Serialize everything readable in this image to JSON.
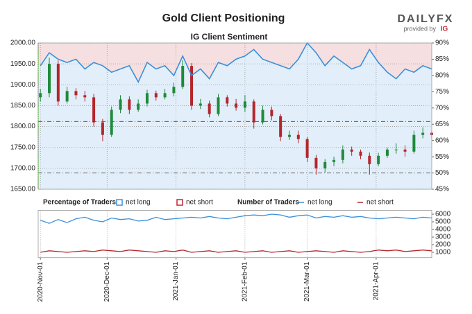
{
  "logo": {
    "brand": "DAILYFX",
    "tagline": "provided by",
    "mark": "IG"
  },
  "chart_data": [
    {
      "type": "candlestick",
      "title": "Gold Client Positioning",
      "subtitle": "IG Client Sentiment",
      "x": [
        "2020-11-01",
        "2020-11-05",
        "2020-11-09",
        "2020-11-13",
        "2020-11-17",
        "2020-11-21",
        "2020-11-25",
        "2020-11-29",
        "2020-12-03",
        "2020-12-07",
        "2020-12-11",
        "2020-12-15",
        "2020-12-19",
        "2020-12-23",
        "2020-12-27",
        "2020-12-31",
        "2021-01-04",
        "2021-01-08",
        "2021-01-12",
        "2021-01-16",
        "2021-01-20",
        "2021-01-24",
        "2021-01-28",
        "2021-02-01",
        "2021-02-05",
        "2021-02-09",
        "2021-02-13",
        "2021-02-17",
        "2021-02-21",
        "2021-02-25",
        "2021-03-01",
        "2021-03-05",
        "2021-03-09",
        "2021-03-13",
        "2021-03-17",
        "2021-03-21",
        "2021-03-25",
        "2021-03-29",
        "2021-04-02",
        "2021-04-06",
        "2021-04-10",
        "2021-04-14",
        "2021-04-18",
        "2021-04-22",
        "2021-04-26"
      ],
      "open": [
        1870,
        1880,
        1950,
        1860,
        1885,
        1875,
        1870,
        1810,
        1780,
        1840,
        1865,
        1840,
        1855,
        1880,
        1870,
        1880,
        1895,
        1945,
        1850,
        1855,
        1830,
        1870,
        1855,
        1845,
        1860,
        1810,
        1840,
        1825,
        1775,
        1780,
        1770,
        1725,
        1700,
        1715,
        1720,
        1745,
        1740,
        1730,
        1710,
        1730,
        1745,
        1745,
        1740,
        1780,
        1785
      ],
      "high": [
        1890,
        1965,
        1958,
        1895,
        1892,
        1885,
        1878,
        1818,
        1848,
        1875,
        1872,
        1865,
        1888,
        1886,
        1890,
        1905,
        1959,
        1952,
        1866,
        1862,
        1878,
        1875,
        1866,
        1875,
        1865,
        1850,
        1848,
        1830,
        1790,
        1790,
        1775,
        1732,
        1722,
        1728,
        1755,
        1752,
        1745,
        1738,
        1737,
        1750,
        1760,
        1755,
        1790,
        1798,
        1790
      ],
      "low": [
        1860,
        1870,
        1850,
        1855,
        1865,
        1860,
        1800,
        1765,
        1775,
        1832,
        1830,
        1835,
        1848,
        1862,
        1865,
        1872,
        1890,
        1840,
        1842,
        1822,
        1825,
        1848,
        1838,
        1835,
        1795,
        1805,
        1815,
        1765,
        1768,
        1760,
        1715,
        1685,
        1690,
        1705,
        1712,
        1730,
        1722,
        1685,
        1705,
        1725,
        1735,
        1728,
        1735,
        1772,
        1772
      ],
      "close": [
        1880,
        1950,
        1860,
        1885,
        1875,
        1870,
        1810,
        1780,
        1840,
        1865,
        1840,
        1855,
        1880,
        1870,
        1880,
        1895,
        1945,
        1850,
        1855,
        1830,
        1870,
        1855,
        1845,
        1860,
        1810,
        1840,
        1825,
        1775,
        1780,
        1770,
        1725,
        1700,
        1715,
        1720,
        1745,
        1740,
        1730,
        1710,
        1730,
        1745,
        1745,
        1740,
        1780,
        1785,
        1780
      ],
      "up_color": "#1f8a3a",
      "down_color": "#b3262c",
      "series": [
        {
          "name": "net long",
          "axis": "y2",
          "color": "#3a8fd9",
          "values": [
            83,
            87,
            85,
            84,
            85,
            82,
            84,
            83,
            81,
            82,
            83,
            78,
            84,
            82,
            83,
            80,
            86,
            80,
            82,
            79,
            84,
            83,
            85,
            86,
            88,
            85,
            84,
            83,
            82,
            85,
            90,
            87,
            83,
            86,
            84,
            82,
            83,
            88,
            84,
            81,
            79,
            82,
            81,
            83,
            82
          ]
        }
      ],
      "legend_title": "Percentage of Traders",
      "legend": [
        {
          "name": "net long",
          "color": "#3a8fd9"
        },
        {
          "name": "net short",
          "color": "#c0272d"
        }
      ],
      "hlines": [
        {
          "axis": "y",
          "value": 1812
        },
        {
          "axis": "y2",
          "value": 50
        }
      ],
      "xlim": [
        "2020-10-31",
        "2021-04-26"
      ],
      "ylim": [
        1650,
        2000
      ],
      "yticks": [
        {
          "value": 1650,
          "label": "1650.00"
        },
        {
          "value": 1700,
          "label": "1700.00"
        },
        {
          "value": 1750,
          "label": "1750.00"
        },
        {
          "value": 1800,
          "label": "1800.00"
        },
        {
          "value": 1850,
          "label": "1850.00"
        },
        {
          "value": 1900,
          "label": "1900.00"
        },
        {
          "value": 1950,
          "label": "1950.00"
        },
        {
          "value": 2000,
          "label": "2000.00"
        }
      ],
      "y2lim": [
        45,
        90
      ],
      "y2ticks": [
        {
          "value": 45,
          "label": "45%"
        },
        {
          "value": 50,
          "label": "50%"
        },
        {
          "value": 55,
          "label": "55%"
        },
        {
          "value": 60,
          "label": "60%"
        },
        {
          "value": 65,
          "label": "65%"
        },
        {
          "value": 70,
          "label": "70%"
        },
        {
          "value": 75,
          "label": "75%"
        },
        {
          "value": 80,
          "label": "80%"
        },
        {
          "value": 85,
          "label": "85%"
        },
        {
          "value": 90,
          "label": "90%"
        }
      ],
      "grid": true
    },
    {
      "type": "line",
      "legend_title": "Number of Traders",
      "x": [
        "2020-11-01",
        "2020-11-05",
        "2020-11-09",
        "2020-11-13",
        "2020-11-17",
        "2020-11-21",
        "2020-11-25",
        "2020-11-29",
        "2020-12-03",
        "2020-12-07",
        "2020-12-11",
        "2020-12-15",
        "2020-12-19",
        "2020-12-23",
        "2020-12-27",
        "2020-12-31",
        "2021-01-04",
        "2021-01-08",
        "2021-01-12",
        "2021-01-16",
        "2021-01-20",
        "2021-01-24",
        "2021-01-28",
        "2021-02-01",
        "2021-02-05",
        "2021-02-09",
        "2021-02-13",
        "2021-02-17",
        "2021-02-21",
        "2021-02-25",
        "2021-03-01",
        "2021-03-05",
        "2021-03-09",
        "2021-03-13",
        "2021-03-17",
        "2021-03-21",
        "2021-03-25",
        "2021-03-29",
        "2021-04-02",
        "2021-04-06",
        "2021-04-10",
        "2021-04-14",
        "2021-04-18",
        "2021-04-22",
        "2021-04-26"
      ],
      "series": [
        {
          "name": "net long",
          "color": "#3a8fd9",
          "values": [
            5200,
            4800,
            5300,
            4900,
            5400,
            5600,
            5200,
            5000,
            5500,
            5300,
            5400,
            5100,
            5200,
            5600,
            5300,
            5400,
            5500,
            5600,
            5500,
            5700,
            5500,
            5400,
            5600,
            5800,
            5900,
            5800,
            6000,
            5900,
            5600,
            5800,
            5900,
            5500,
            5700,
            5600,
            5800,
            5600,
            5700,
            5500,
            5400,
            5500,
            5600,
            5500,
            5400,
            5600,
            5500
          ]
        },
        {
          "name": "net short",
          "color": "#b3262c",
          "values": [
            1000,
            1200,
            1100,
            1000,
            1100,
            1200,
            1100,
            1300,
            1200,
            1100,
            1300,
            1200,
            1100,
            1000,
            1200,
            1100,
            1300,
            1000,
            1100,
            1200,
            1000,
            1100,
            1200,
            1000,
            1100,
            1200,
            1000,
            1100,
            1200,
            1000,
            1100,
            1200,
            1100,
            1000,
            1200,
            1100,
            1000,
            1100,
            1300,
            1200,
            1300,
            1100,
            1200,
            1300,
            1200
          ]
        }
      ],
      "xlim": [
        "2020-10-31",
        "2021-04-26"
      ],
      "xticks": [
        {
          "value": "2020-11-01",
          "label": "2020-Nov-01"
        },
        {
          "value": "2020-12-01",
          "label": "2020-Dec-01"
        },
        {
          "value": "2021-01-01",
          "label": "2021-Jan-01"
        },
        {
          "value": "2021-02-01",
          "label": "2021-Feb-01"
        },
        {
          "value": "2021-03-01",
          "label": "2021-Mar-01"
        },
        {
          "value": "2021-04-01",
          "label": "2021-Apr-01"
        }
      ],
      "ylim": [
        300,
        6500
      ],
      "yticks": [
        1000,
        2000,
        3000,
        4000,
        5000,
        6000
      ],
      "grid": true
    }
  ]
}
